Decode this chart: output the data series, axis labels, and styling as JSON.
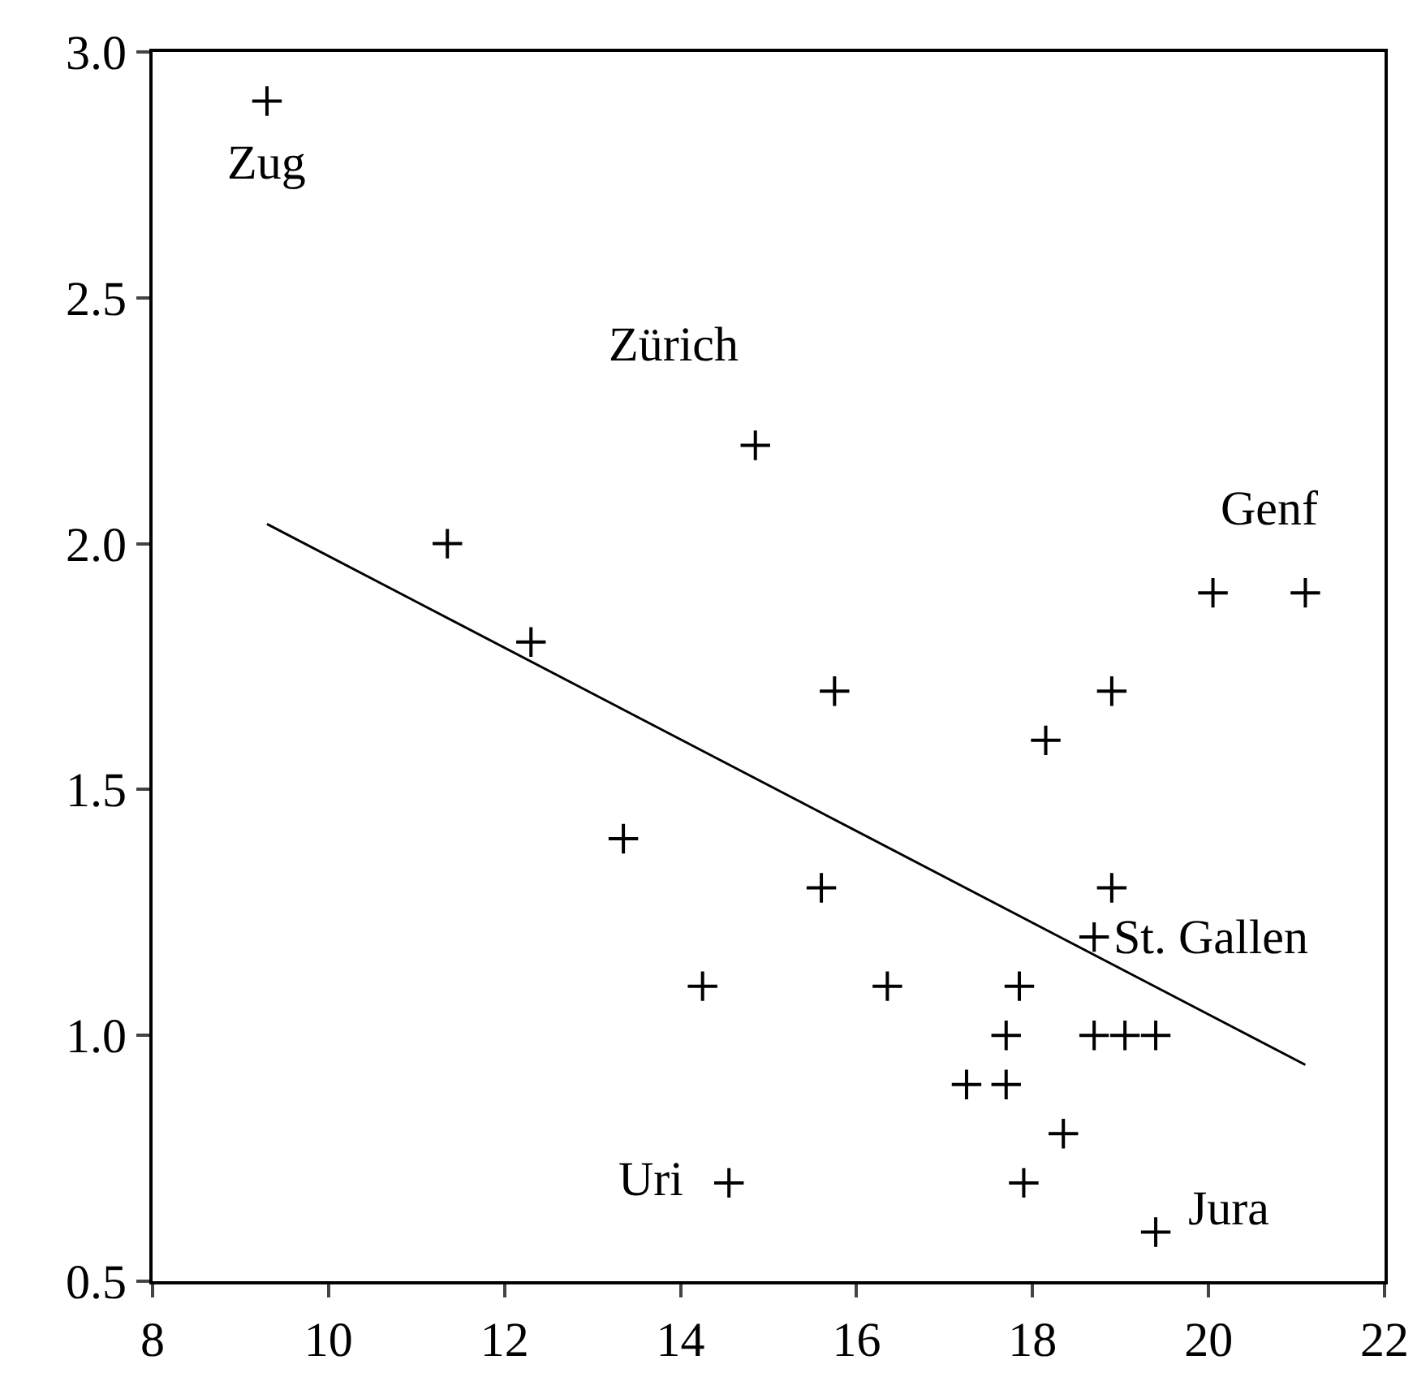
{
  "chart_data": {
    "type": "scatter",
    "marker": "cross",
    "grid": false,
    "xlim": [
      8,
      22
    ],
    "xticks": [
      8,
      10,
      12,
      14,
      16,
      18,
      20,
      22
    ],
    "ylim": [
      0.5,
      3.0
    ],
    "yticks": [
      {
        "value": 0.5,
        "label": "0.5"
      },
      {
        "value": 1.0,
        "label": "1.0"
      },
      {
        "value": 1.5,
        "label": "1.5"
      },
      {
        "value": 2.0,
        "label": "2.0"
      },
      {
        "value": 2.5,
        "label": "2.5"
      },
      {
        "value": 3.0,
        "label": "3.0"
      }
    ],
    "series": [
      {
        "color": "#000000",
        "x": [
          9.3,
          11.35,
          12.3,
          14.85,
          13.35,
          14.25,
          15.75,
          15.6,
          16.35,
          14.55,
          17.25,
          17.7,
          17.7,
          17.85,
          17.9,
          18.15,
          18.35,
          18.7,
          18.7,
          18.9,
          18.9,
          19.05,
          19.4,
          19.4,
          20.05,
          21.1
        ],
        "values": [
          2.9,
          2.0,
          1.8,
          2.2,
          1.4,
          1.1,
          1.7,
          1.3,
          1.1,
          0.7,
          0.9,
          0.9,
          1.0,
          1.1,
          0.7,
          1.6,
          0.8,
          1.0,
          1.2,
          1.7,
          1.3,
          1.0,
          1.0,
          0.6,
          1.9,
          1.9
        ]
      },
      {
        "type": "line",
        "marker": "none",
        "color": "#000000",
        "x": [
          9.3,
          21.1
        ],
        "values": [
          2.04,
          0.94
        ]
      }
    ],
    "annotations": [
      {
        "text": "Zug",
        "x": 9.3,
        "y": 2.9
      },
      {
        "text": "Zürich",
        "x": 14.85,
        "y": 2.2
      },
      {
        "text": "Genf",
        "x": 21.1,
        "y": 1.9
      },
      {
        "text": "St. Gallen",
        "x": 18.7,
        "y": 1.2
      },
      {
        "text": "Uri",
        "x": 14.55,
        "y": 0.7
      },
      {
        "text": "Jura",
        "x": 19.4,
        "y": 0.6
      }
    ]
  }
}
